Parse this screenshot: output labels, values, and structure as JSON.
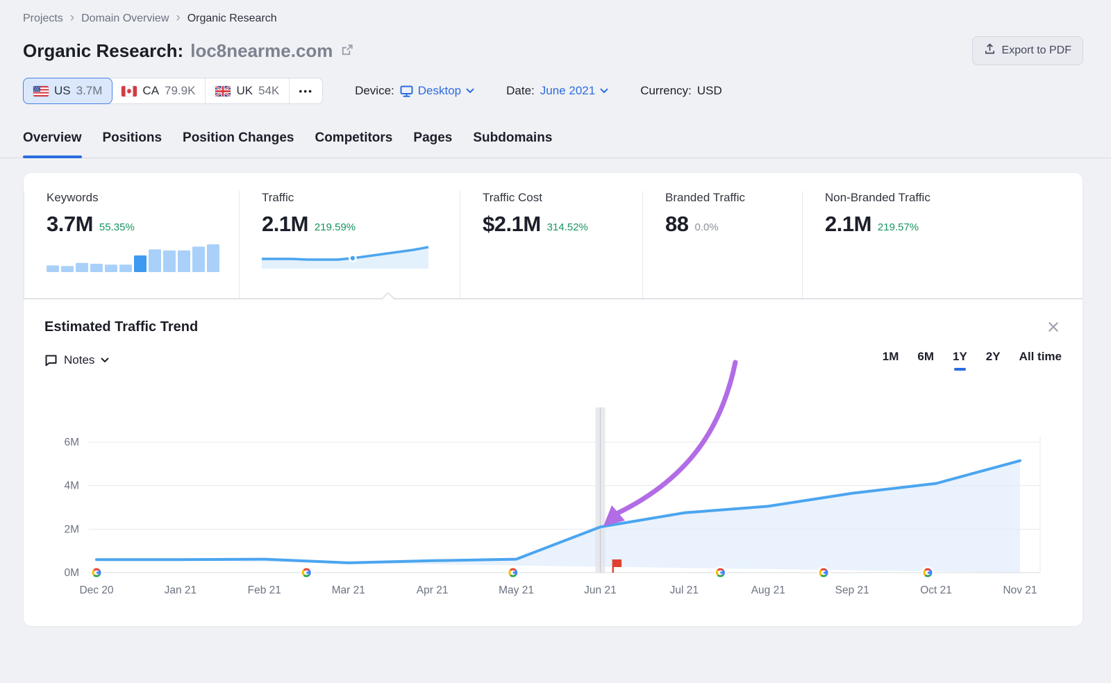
{
  "page": {
    "accent_blue": "#2b6ce0",
    "positive_green": "#18945f",
    "chart_line_blue": "#4ba5ef",
    "chart_fill_blue": "#dceafc",
    "annotation_purple": "#b26ce6",
    "note_flag_red": "#e0402f"
  },
  "breadcrumb": {
    "items": [
      "Projects",
      "Domain Overview",
      "Organic Research"
    ]
  },
  "header": {
    "title": "Organic Research:",
    "domain": "loc8nearme.com",
    "export_button": "Export to PDF"
  },
  "filters": {
    "countries": [
      {
        "code": "US",
        "value": "3.7M",
        "selected": true
      },
      {
        "code": "CA",
        "value": "79.9K",
        "selected": false
      },
      {
        "code": "UK",
        "value": "54K",
        "selected": false
      }
    ],
    "more_label": "•••",
    "device_label": "Device:",
    "device_value": "Desktop",
    "date_label": "Date:",
    "date_value": "June 2021",
    "currency_label": "Currency:",
    "currency_value": "USD"
  },
  "tabs": {
    "items": [
      "Overview",
      "Positions",
      "Position Changes",
      "Competitors",
      "Pages",
      "Subdomains"
    ],
    "active_index": 0
  },
  "stats": {
    "cards": [
      {
        "title": "Keywords",
        "value": "3.7M",
        "delta": "55.35%",
        "delta_color": "green",
        "minichart": "keywords_minichart"
      },
      {
        "title": "Traffic",
        "value": "2.1M",
        "delta": "219.59%",
        "delta_color": "green",
        "minichart": "traffic_minichart"
      },
      {
        "title": "Traffic Cost",
        "value": "$2.1M",
        "delta": "314.52%",
        "delta_color": "green",
        "minichart": null
      },
      {
        "title": "Branded Traffic",
        "value": "88",
        "delta": "0.0%",
        "delta_color": "gray",
        "minichart": null
      },
      {
        "title": "Non-Branded Traffic",
        "value": "2.1M",
        "delta": "219.57%",
        "delta_color": "green",
        "minichart": null
      }
    ]
  },
  "trend": {
    "title": "Estimated Traffic Trend",
    "notes_label": "Notes",
    "ranges": [
      "1M",
      "6M",
      "1Y",
      "2Y",
      "All time"
    ],
    "active_range_index": 2
  },
  "chart_data": [
    {
      "id": "keywords_minichart",
      "type": "bar",
      "description": "12-month keywords trend sparkline, current month (Jun 21) highlighted",
      "values_relative": [
        24,
        22,
        33,
        30,
        27,
        27,
        60,
        82,
        78,
        78,
        92,
        100
      ],
      "highlight_index": 6,
      "bar_color": "#a9d0f8",
      "highlight_color": "#3d9af0"
    },
    {
      "id": "traffic_minichart",
      "type": "area",
      "description": "12-month traffic trend sparkline with dot on selected month (Jun 21)",
      "values_relative": [
        11,
        11,
        11,
        10,
        10,
        10,
        12,
        15,
        18,
        21,
        24,
        28
      ],
      "dot_index": 6,
      "line_color": "#4ba5ef",
      "fill_color": "#e3f1fd"
    },
    {
      "id": "estimated_traffic_trend",
      "type": "area",
      "title": "Estimated Traffic Trend",
      "x_labels": [
        "Dec 20",
        "Jan 21",
        "Feb 21",
        "Mar 21",
        "Apr 21",
        "May 21",
        "Jun 21",
        "Jul 21",
        "Aug 21",
        "Sep 21",
        "Oct 21",
        "Nov 21"
      ],
      "values_millions": [
        0.6,
        0.6,
        0.62,
        0.45,
        0.55,
        0.62,
        2.1,
        2.75,
        3.05,
        3.65,
        4.1,
        5.15
      ],
      "y_ticks": [
        "0M",
        "2M",
        "4M",
        "6M"
      ],
      "y_tick_values": [
        0,
        2,
        4,
        6
      ],
      "ylim": [
        0,
        7.5
      ],
      "grid": true,
      "google_update_markers_month_index": [
        0,
        2.5,
        4.96,
        7.43,
        8.66,
        9.9
      ],
      "note_flag_month_index": 6.15,
      "highlighted_month_index": 6,
      "annotation": "purple curved arrow pointing at the Jun 21 data point (2.1M)"
    }
  ]
}
